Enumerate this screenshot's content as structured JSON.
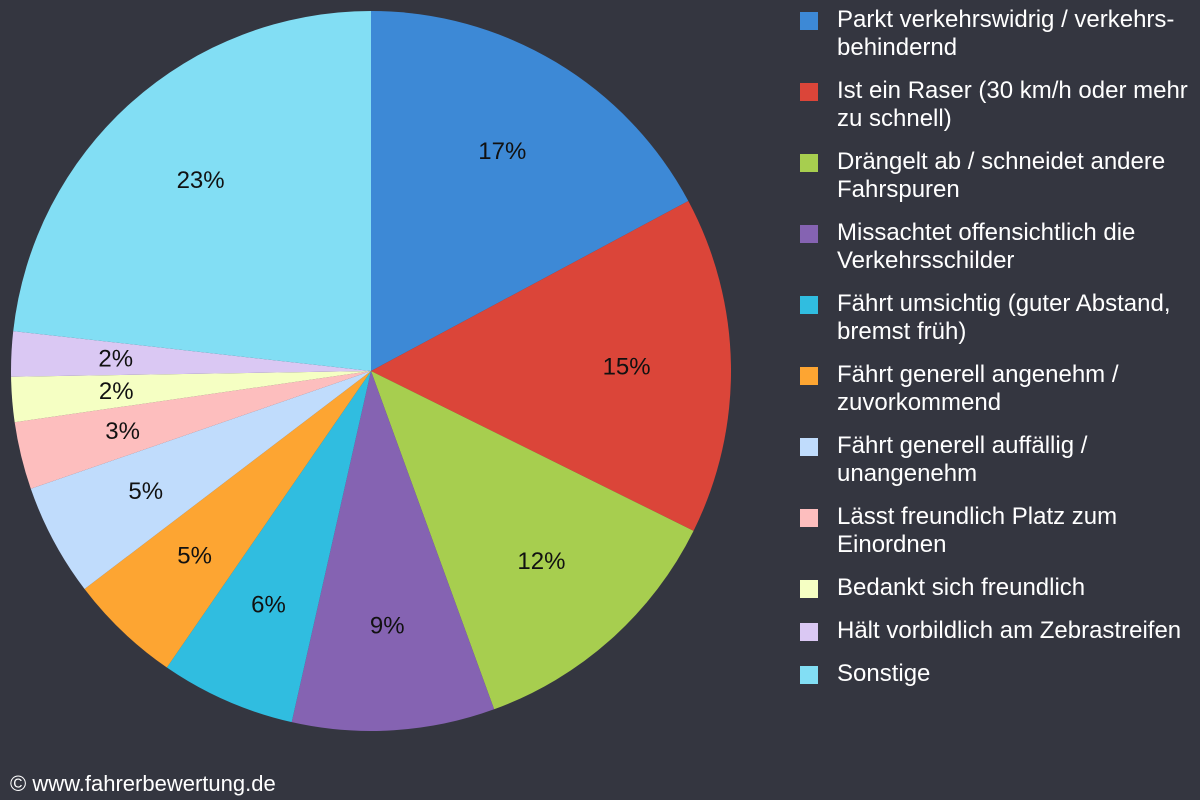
{
  "chart_data": {
    "type": "pie",
    "start_angle_deg": 0,
    "direction": "clockwise",
    "legend_position": "right",
    "slices": [
      {
        "name": "Parkt verkehrswidrig / verkehrs-behindernd",
        "label": "17%",
        "value": 17,
        "color": "#3d89d6"
      },
      {
        "name": "Ist ein Raser (30 km/h oder mehr zu schnell)",
        "label": "15%",
        "value": 15,
        "color": "#db4539"
      },
      {
        "name": "Drängelt ab / schneidet andere Fahrspuren",
        "label": "12%",
        "value": 12,
        "color": "#a7ce4f"
      },
      {
        "name": "Missachtet offensichtlich die Verkehrsschilder",
        "label": "9%",
        "value": 9,
        "color": "#8563b2"
      },
      {
        "name": "Fährt umsichtig (guter Abstand, bremst früh)",
        "label": "6%",
        "value": 6,
        "color": "#30bde0"
      },
      {
        "name": "Fährt generell angenehm / zuvorkommend",
        "label": "5%",
        "value": 5,
        "color": "#fda532"
      },
      {
        "name": "Fährt generell auffällig / unangenehm",
        "label": "5%",
        "value": 5,
        "color": "#c0dcfc"
      },
      {
        "name": "Lässt freundlich Platz zum Einordnen",
        "label": "3%",
        "value": 3,
        "color": "#fdbebe"
      },
      {
        "name": "Bedankt sich freundlich",
        "label": "2%",
        "value": 2,
        "color": "#f5ffc3"
      },
      {
        "name": "Hält vorbildlich am Zebrastreifen",
        "label": "2%",
        "value": 2,
        "color": "#dac8f3"
      },
      {
        "name": "Sonstige",
        "label": "23%",
        "value": 23,
        "color": "#82def4"
      }
    ]
  },
  "footer": {
    "copyright": "© www.fahrerbewertung.de"
  }
}
